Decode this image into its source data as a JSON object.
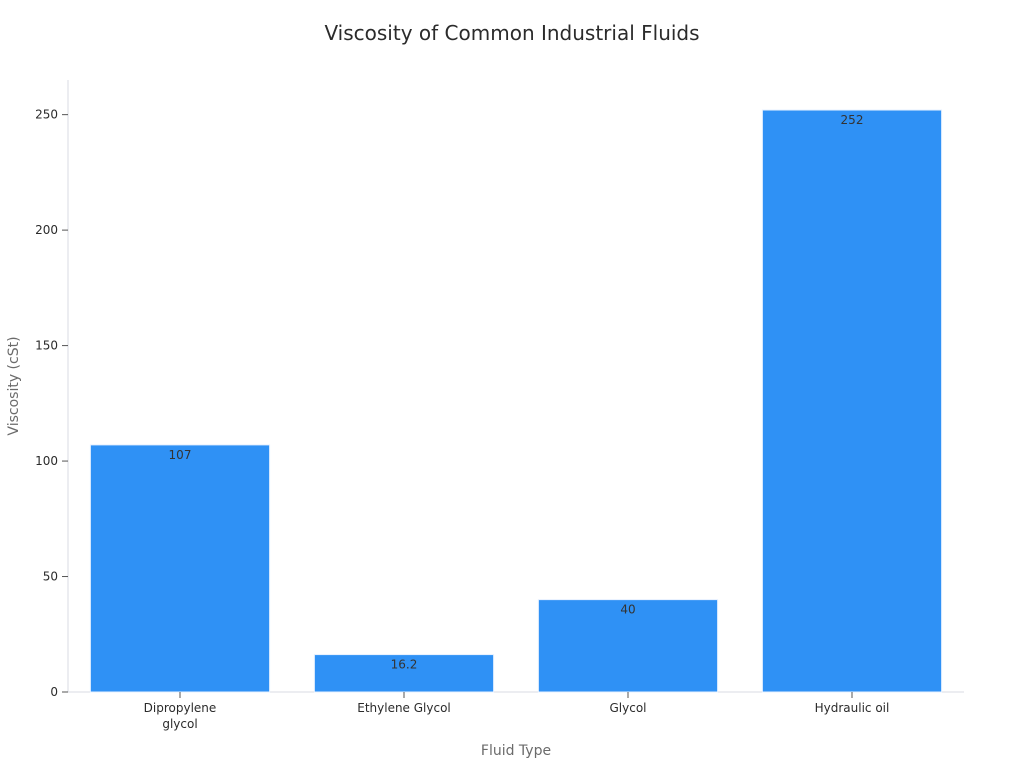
{
  "chart_data": {
    "type": "bar",
    "title": "Viscosity of Common Industrial Fluids",
    "xlabel": "Fluid Type",
    "ylabel": "Viscosity (cSt)",
    "categories": [
      "Dipropylene glycol",
      "Ethylene Glycol",
      "Glycol",
      "Hydraulic oil"
    ],
    "values": [
      107,
      16.2,
      40,
      252
    ],
    "data_labels": [
      "107",
      "16.2",
      "40",
      "252"
    ],
    "ylim": [
      0,
      265
    ],
    "yticks": [
      0,
      50,
      100,
      150,
      200,
      250
    ],
    "grid": false,
    "legend": "none",
    "bar_color": "#2f91f5"
  }
}
